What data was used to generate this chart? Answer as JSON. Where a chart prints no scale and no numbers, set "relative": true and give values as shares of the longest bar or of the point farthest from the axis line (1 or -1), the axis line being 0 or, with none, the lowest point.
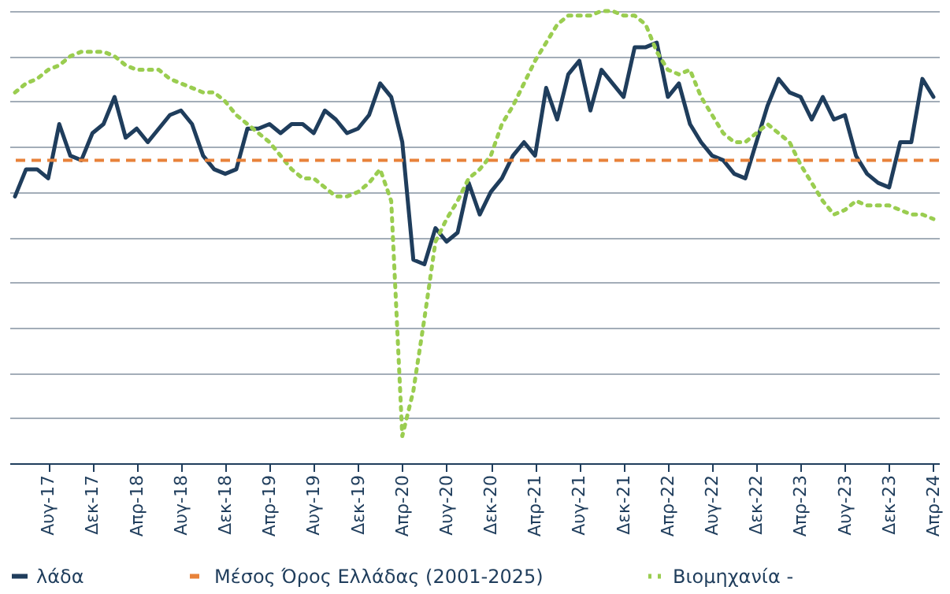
{
  "chart_data": {
    "type": "line",
    "relative": true,
    "grid": "y",
    "legend": "bottom",
    "categories": [
      null,
      null,
      null,
      "Αυγ-17",
      null,
      null,
      null,
      "Δεκ-17",
      null,
      null,
      null,
      "Απρ-18",
      null,
      null,
      null,
      "Αυγ-18",
      null,
      null,
      null,
      "Δεκ-18",
      null,
      null,
      null,
      "Απρ-19",
      null,
      null,
      null,
      "Αυγ-19",
      null,
      null,
      null,
      "Δεκ-19",
      null,
      null,
      null,
      "Απρ-20",
      null,
      null,
      null,
      "Αυγ-20",
      null,
      null,
      null,
      "Δεκ-20",
      null,
      null,
      null,
      "Απρ-21",
      null,
      null,
      null,
      "Αυγ-21",
      null,
      null,
      null,
      "Δεκ-21",
      null,
      null,
      null,
      "Απρ-22",
      null,
      null,
      null,
      "Αυγ-22",
      null,
      null,
      null,
      "Δεκ-22",
      null,
      null,
      null,
      "Απρ-23",
      null,
      null,
      null,
      "Αυγ-23",
      null,
      null,
      null,
      "Δεκ-23",
      null,
      null,
      null,
      "Απρ-24"
    ],
    "series": [
      {
        "name": "λάδα",
        "color": "#1f3d5c",
        "line_style": "solid",
        "values": [
          0.59,
          0.65,
          0.65,
          0.63,
          0.75,
          0.68,
          0.67,
          0.73,
          0.75,
          0.81,
          0.72,
          0.74,
          0.71,
          0.74,
          0.77,
          0.78,
          0.75,
          0.68,
          0.65,
          0.64,
          0.65,
          0.74,
          0.74,
          0.75,
          0.73,
          0.75,
          0.75,
          0.73,
          0.78,
          0.76,
          0.73,
          0.74,
          0.77,
          0.84,
          0.81,
          0.71,
          0.45,
          0.44,
          0.52,
          0.49,
          0.51,
          0.62,
          0.55,
          0.6,
          0.63,
          0.68,
          0.71,
          0.68,
          0.83,
          0.76,
          0.86,
          0.89,
          0.78,
          0.87,
          0.84,
          0.81,
          0.92,
          0.92,
          0.93,
          0.81,
          0.84,
          0.75,
          0.71,
          0.68,
          0.67,
          0.64,
          0.63,
          0.71,
          0.79,
          0.85,
          0.82,
          0.81,
          0.76,
          0.81,
          0.76,
          0.77,
          0.68,
          0.64,
          0.62,
          0.61,
          0.71,
          0.71,
          0.85,
          0.81
        ]
      },
      {
        "name": "Βιομηχανία -",
        "color": "#9acd50",
        "line_style": "dotted",
        "values": [
          0.82,
          0.84,
          0.85,
          0.87,
          0.88,
          0.9,
          0.91,
          0.91,
          0.91,
          0.9,
          0.88,
          0.87,
          0.87,
          0.87,
          0.85,
          0.84,
          0.83,
          0.82,
          0.82,
          0.8,
          0.77,
          0.75,
          0.73,
          0.71,
          0.68,
          0.65,
          0.63,
          0.63,
          0.61,
          0.59,
          0.59,
          0.6,
          0.62,
          0.65,
          0.58,
          0.06,
          0.16,
          0.32,
          0.49,
          0.54,
          0.58,
          0.63,
          0.65,
          0.68,
          0.75,
          0.79,
          0.84,
          0.89,
          0.93,
          0.97,
          0.99,
          0.99,
          0.99,
          1,
          1,
          0.99,
          0.99,
          0.97,
          0.91,
          0.87,
          0.86,
          0.87,
          0.81,
          0.77,
          0.73,
          0.71,
          0.71,
          0.73,
          0.75,
          0.73,
          0.71,
          0.66,
          0.62,
          0.58,
          0.55,
          0.56,
          0.58,
          0.57,
          0.57,
          0.57,
          0.56,
          0.55,
          0.55,
          0.54
        ]
      }
    ],
    "ref_lines": [
      {
        "axis": "y",
        "value": 0.67,
        "label": "Μέσος Όρος Ελλάδας (2001-2025)",
        "color": "#e8823a",
        "line_style": "dashed"
      }
    ]
  }
}
